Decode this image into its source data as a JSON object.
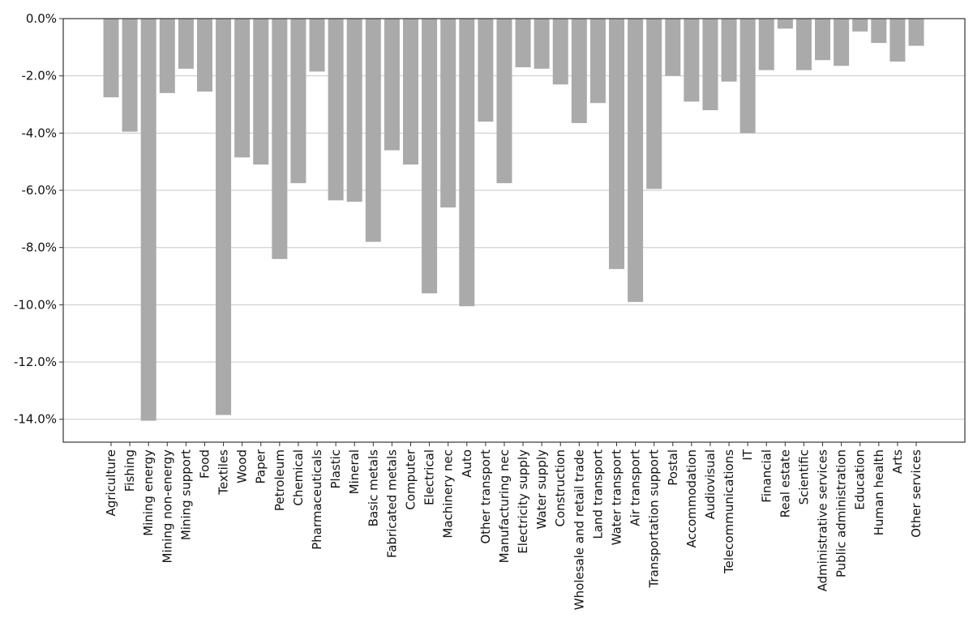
{
  "chart_data": {
    "type": "bar",
    "title": "",
    "xlabel": "",
    "ylabel": "",
    "ylim": [
      -14.8,
      0
    ],
    "yticks": [
      0,
      -2,
      -4,
      -6,
      -8,
      -10,
      -12,
      -14
    ],
    "ytick_format": "percent_one_decimal",
    "grid": "horizontal",
    "bar_color": "#aaaaaa",
    "categories": [
      "Agriculture",
      "Fishing",
      "Mining energy",
      "Mining non-energy",
      "Mining support",
      "Food",
      "Textiles",
      "Wood",
      "Paper",
      "Petroleum",
      "Chemical",
      "Pharmaceuticals",
      "Plastic",
      "Mineral",
      "Basic metals",
      "Fabricated metals",
      "Computer",
      "Electrical",
      "Machinery nec",
      "Auto",
      "Other transport",
      "Manufacturing nec",
      "Electricity supply",
      "Water supply",
      "Construction",
      "Wholesale and retail trade",
      "Land transport",
      "Water transport",
      "Air transport",
      "Transportation support",
      "Postal",
      "Accommodation",
      "Audiovisual",
      "Telecommunications",
      "IT",
      "Financial",
      "Real estate",
      "Scientific",
      "Administrative services",
      "Public administration",
      "Education",
      "Human health",
      "Arts",
      "Other services"
    ],
    "values": [
      -2.75,
      -3.95,
      -14.05,
      -2.6,
      -1.75,
      -2.55,
      -13.85,
      -4.85,
      -5.1,
      -8.4,
      -5.75,
      -1.85,
      -6.35,
      -6.4,
      -7.8,
      -4.6,
      -5.1,
      -9.6,
      -6.6,
      -10.05,
      -3.6,
      -5.75,
      -1.7,
      -1.75,
      -2.3,
      -3.65,
      -2.95,
      -8.75,
      -9.9,
      -5.95,
      -2.0,
      -2.9,
      -3.2,
      -2.2,
      -4.0,
      -1.8,
      -0.35,
      -1.8,
      -1.45,
      -1.65,
      -0.45,
      -0.85,
      -1.5,
      -0.95
    ]
  }
}
